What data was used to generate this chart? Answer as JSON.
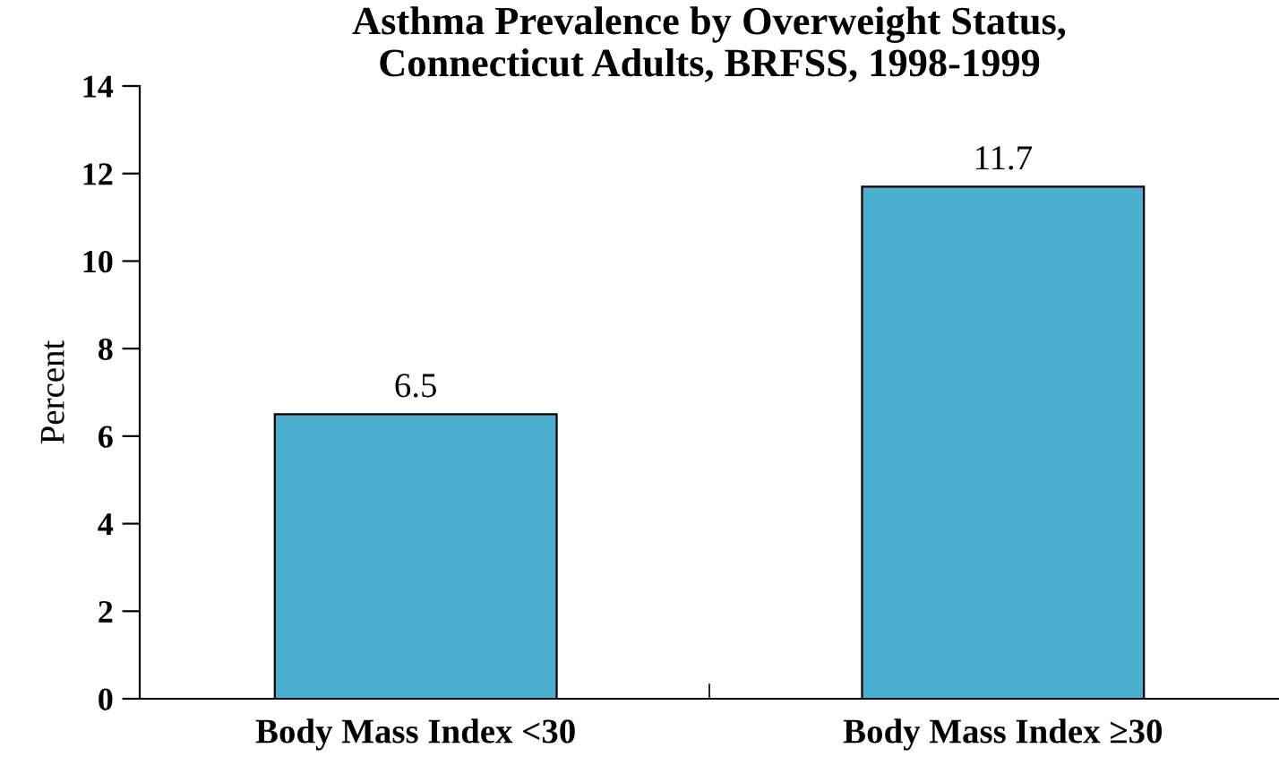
{
  "chart_data": {
    "type": "bar",
    "title": "Asthma Prevalence by Overweight Status,\nConnecticut Adults, BRFSS, 1998-1999",
    "categories": [
      "Body Mass Index <30",
      "Body Mass Index ≥30"
    ],
    "values": [
      6.5,
      11.7
    ],
    "color": "#4bafcf",
    "ylabel": "Percent",
    "ylim": [
      0,
      14
    ],
    "yticks": [
      0,
      2,
      4,
      6,
      8,
      10,
      12,
      14
    ],
    "data_labels": true,
    "grid": false,
    "legend": false
  }
}
